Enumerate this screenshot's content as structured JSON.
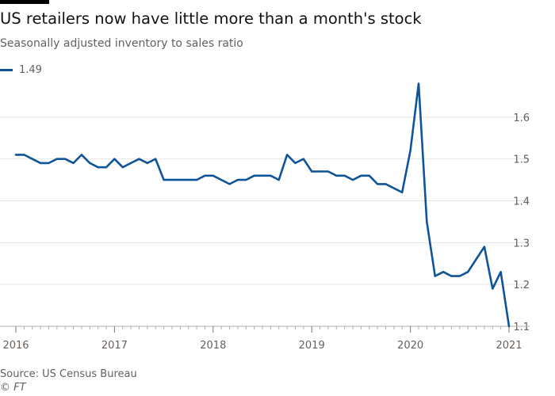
{
  "header": {
    "title": "US retailers now have little more than a month's stock",
    "subtitle": "Seasonally adjusted inventory to sales ratio"
  },
  "legend": {
    "label": "1.49",
    "color": "#0f5499"
  },
  "footer": {
    "source": "Source: US Census Bureau",
    "credit": "© FT"
  },
  "chart_data": {
    "type": "line",
    "title": "US retailers now have little more than a month's stock",
    "subtitle": "Seasonally adjusted inventory to sales ratio",
    "xlabel": "",
    "ylabel": "",
    "ylim": [
      1.1,
      1.7
    ],
    "yticks": [
      1.1,
      1.2,
      1.3,
      1.4,
      1.5,
      1.6
    ],
    "xticks": [
      "2016",
      "2017",
      "2018",
      "2019",
      "2020",
      "2021"
    ],
    "grid": true,
    "legend_position": "top-left",
    "y_axis_side": "right",
    "series": [
      {
        "name": "1.49",
        "color": "#0f5499",
        "start": "2016-01",
        "frequency": "monthly",
        "values": [
          1.51,
          1.51,
          1.5,
          1.49,
          1.49,
          1.5,
          1.5,
          1.49,
          1.51,
          1.49,
          1.48,
          1.48,
          1.5,
          1.48,
          1.49,
          1.5,
          1.49,
          1.5,
          1.45,
          1.45,
          1.45,
          1.45,
          1.45,
          1.46,
          1.46,
          1.45,
          1.44,
          1.45,
          1.45,
          1.46,
          1.46,
          1.46,
          1.45,
          1.51,
          1.49,
          1.5,
          1.47,
          1.47,
          1.47,
          1.46,
          1.46,
          1.45,
          1.46,
          1.46,
          1.44,
          1.44,
          1.43,
          1.42,
          1.52,
          1.68,
          1.35,
          1.22,
          1.23,
          1.22,
          1.22,
          1.23,
          1.26,
          1.29,
          1.19,
          1.23,
          1.1
        ]
      }
    ]
  }
}
